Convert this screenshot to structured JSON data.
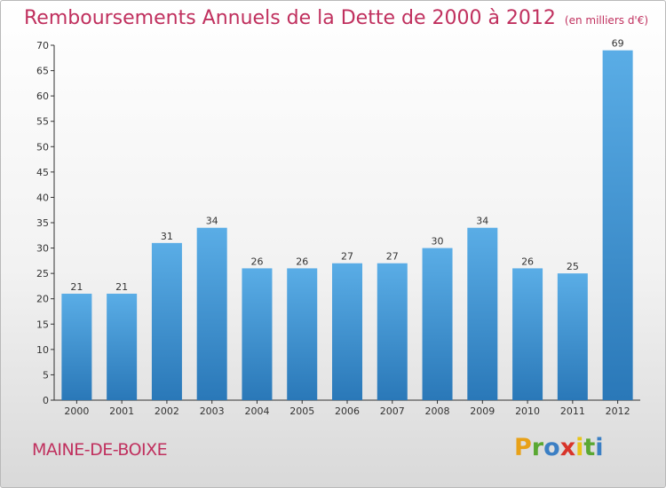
{
  "title": "Remboursements Annuels de la Dette de 2000 à 2012",
  "unit_note": "(en milliers d'€)",
  "commune": "MAINE-DE-BOIXE",
  "logo": "Proxiti",
  "colors": {
    "title": "#c0305e",
    "bar_top": "#5aade6",
    "bar_bottom": "#2a78b8",
    "axis": "#333333"
  },
  "chart_data": {
    "type": "bar",
    "categories": [
      "2000",
      "2001",
      "2002",
      "2003",
      "2004",
      "2005",
      "2006",
      "2007",
      "2008",
      "2009",
      "2010",
      "2011",
      "2012"
    ],
    "values": [
      21,
      21,
      31,
      34,
      26,
      26,
      27,
      27,
      30,
      34,
      26,
      25,
      69
    ],
    "ylim": [
      0,
      70
    ],
    "yticks": [
      0,
      5,
      10,
      15,
      20,
      25,
      30,
      35,
      40,
      45,
      50,
      55,
      60,
      65,
      70
    ],
    "grid": false,
    "legend": "none",
    "data_labels": true
  }
}
